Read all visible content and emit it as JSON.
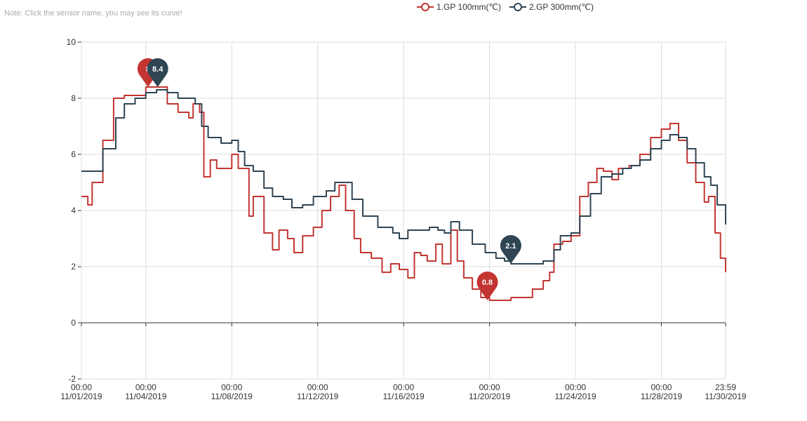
{
  "note": "Note: Click the sensor name, you may see its curve!",
  "chart_data": {
    "type": "line",
    "x_tick_labels": [
      {
        "day": 0,
        "time": "00:00",
        "date": "11/01/2019"
      },
      {
        "day": 3,
        "time": "00:00",
        "date": "11/04/2019"
      },
      {
        "day": 7,
        "time": "00:00",
        "date": "11/08/2019"
      },
      {
        "day": 11,
        "time": "00:00",
        "date": "11/12/2019"
      },
      {
        "day": 15,
        "time": "00:00",
        "date": "11/16/2019"
      },
      {
        "day": 19,
        "time": "00:00",
        "date": "11/20/2019"
      },
      {
        "day": 23,
        "time": "00:00",
        "date": "11/24/2019"
      },
      {
        "day": 27,
        "time": "00:00",
        "date": "11/28/2019"
      },
      {
        "day": 29.99,
        "time": "23:59",
        "date": "11/30/2019"
      }
    ],
    "x_range": [
      0,
      29.99
    ],
    "ylim": [
      -2,
      10
    ],
    "y_ticks": [
      -2,
      0,
      2,
      4,
      6,
      8,
      10
    ],
    "grid": true,
    "legend_position": "top-center",
    "series": [
      {
        "name": "1.GP 100mm(℃)",
        "color": "#c23531",
        "points": [
          [
            0,
            4.5
          ],
          [
            0.3,
            4.2
          ],
          [
            0.5,
            5.0
          ],
          [
            1.0,
            6.5
          ],
          [
            1.5,
            8.0
          ],
          [
            2.0,
            8.1
          ],
          [
            2.5,
            8.1
          ],
          [
            3.0,
            8.4
          ],
          [
            3.5,
            8.4
          ],
          [
            4.0,
            7.8
          ],
          [
            4.5,
            7.5
          ],
          [
            5.0,
            7.3
          ],
          [
            5.2,
            7.8
          ],
          [
            5.5,
            7.5
          ],
          [
            5.7,
            5.2
          ],
          [
            6.0,
            5.8
          ],
          [
            6.3,
            5.5
          ],
          [
            6.7,
            5.5
          ],
          [
            7.0,
            6.0
          ],
          [
            7.3,
            5.5
          ],
          [
            7.8,
            3.8
          ],
          [
            8.0,
            4.5
          ],
          [
            8.5,
            3.2
          ],
          [
            8.9,
            2.6
          ],
          [
            9.2,
            3.3
          ],
          [
            9.6,
            3.0
          ],
          [
            9.9,
            2.5
          ],
          [
            10.3,
            3.1
          ],
          [
            10.8,
            3.4
          ],
          [
            11.2,
            4.0
          ],
          [
            11.6,
            4.5
          ],
          [
            12.0,
            4.9
          ],
          [
            12.3,
            4.0
          ],
          [
            12.7,
            3.0
          ],
          [
            13.0,
            2.5
          ],
          [
            13.5,
            2.3
          ],
          [
            14.0,
            1.8
          ],
          [
            14.4,
            2.1
          ],
          [
            14.8,
            1.9
          ],
          [
            15.2,
            1.6
          ],
          [
            15.5,
            2.5
          ],
          [
            15.8,
            2.4
          ],
          [
            16.1,
            2.2
          ],
          [
            16.5,
            2.8
          ],
          [
            16.8,
            2.1
          ],
          [
            17.2,
            3.3
          ],
          [
            17.5,
            2.2
          ],
          [
            17.8,
            1.6
          ],
          [
            18.2,
            1.2
          ],
          [
            18.6,
            0.9
          ],
          [
            19.0,
            0.8
          ],
          [
            19.5,
            0.8
          ],
          [
            20.0,
            0.9
          ],
          [
            20.6,
            0.9
          ],
          [
            21.0,
            1.2
          ],
          [
            21.5,
            1.5
          ],
          [
            21.8,
            1.8
          ],
          [
            22.0,
            2.8
          ],
          [
            22.4,
            2.9
          ],
          [
            22.8,
            3.1
          ],
          [
            23.2,
            4.5
          ],
          [
            23.6,
            5.0
          ],
          [
            24.0,
            5.5
          ],
          [
            24.3,
            5.4
          ],
          [
            24.7,
            5.1
          ],
          [
            25.0,
            5.5
          ],
          [
            25.5,
            5.6
          ],
          [
            26.0,
            6.0
          ],
          [
            26.5,
            6.6
          ],
          [
            27.0,
            6.9
          ],
          [
            27.4,
            7.1
          ],
          [
            27.8,
            6.5
          ],
          [
            28.2,
            5.7
          ],
          [
            28.6,
            5.0
          ],
          [
            29.0,
            4.3
          ],
          [
            29.2,
            4.5
          ],
          [
            29.5,
            3.2
          ],
          [
            29.75,
            2.3
          ],
          [
            29.99,
            1.8
          ]
        ]
      },
      {
        "name": "2.GP 300mm(℃)",
        "color": "#2f4554",
        "points": [
          [
            0,
            5.4
          ],
          [
            0.5,
            5.4
          ],
          [
            1.0,
            6.2
          ],
          [
            1.6,
            7.3
          ],
          [
            2.0,
            7.8
          ],
          [
            2.5,
            8.0
          ],
          [
            3.0,
            8.2
          ],
          [
            3.5,
            8.3
          ],
          [
            4.0,
            8.2
          ],
          [
            4.5,
            8.0
          ],
          [
            5.0,
            8.0
          ],
          [
            5.3,
            7.8
          ],
          [
            5.6,
            7.0
          ],
          [
            5.9,
            6.6
          ],
          [
            6.5,
            6.4
          ],
          [
            7.0,
            6.5
          ],
          [
            7.3,
            6.1
          ],
          [
            7.6,
            5.6
          ],
          [
            8.0,
            5.4
          ],
          [
            8.5,
            4.8
          ],
          [
            8.9,
            4.5
          ],
          [
            9.4,
            4.4
          ],
          [
            9.8,
            4.1
          ],
          [
            10.3,
            4.2
          ],
          [
            10.8,
            4.5
          ],
          [
            11.4,
            4.7
          ],
          [
            11.8,
            5.0
          ],
          [
            12.2,
            5.0
          ],
          [
            12.6,
            4.4
          ],
          [
            13.1,
            3.8
          ],
          [
            13.8,
            3.4
          ],
          [
            14.5,
            3.2
          ],
          [
            14.8,
            3.0
          ],
          [
            15.2,
            3.3
          ],
          [
            15.8,
            3.3
          ],
          [
            16.2,
            3.4
          ],
          [
            16.6,
            3.3
          ],
          [
            16.9,
            3.2
          ],
          [
            17.2,
            3.6
          ],
          [
            17.6,
            3.3
          ],
          [
            18.2,
            2.8
          ],
          [
            18.8,
            2.5
          ],
          [
            19.3,
            2.3
          ],
          [
            19.7,
            2.2
          ],
          [
            20.0,
            2.1
          ],
          [
            20.5,
            2.1
          ],
          [
            21.0,
            2.1
          ],
          [
            21.5,
            2.2
          ],
          [
            22.0,
            2.6
          ],
          [
            22.3,
            3.1
          ],
          [
            22.8,
            3.2
          ],
          [
            23.2,
            3.8
          ],
          [
            23.7,
            4.6
          ],
          [
            24.2,
            5.2
          ],
          [
            24.7,
            5.3
          ],
          [
            25.2,
            5.5
          ],
          [
            25.6,
            5.6
          ],
          [
            26.0,
            5.8
          ],
          [
            26.5,
            6.2
          ],
          [
            27.0,
            6.5
          ],
          [
            27.4,
            6.7
          ],
          [
            27.8,
            6.6
          ],
          [
            28.2,
            6.2
          ],
          [
            28.6,
            5.7
          ],
          [
            29.0,
            5.2
          ],
          [
            29.3,
            4.9
          ],
          [
            29.6,
            4.2
          ],
          [
            29.99,
            3.5
          ]
        ]
      }
    ],
    "markers": [
      {
        "series": 0,
        "x": 3.1,
        "y": 8.4,
        "label": "8"
      },
      {
        "series": 1,
        "x": 3.55,
        "y": 8.4,
        "label": "8.4"
      },
      {
        "series": 0,
        "x": 18.9,
        "y": 0.8,
        "label": "0.8"
      },
      {
        "series": 1,
        "x": 19.99,
        "y": 2.1,
        "label": "2.1"
      }
    ]
  }
}
